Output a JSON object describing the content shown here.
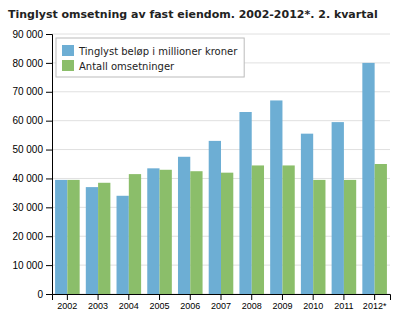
{
  "chart_data": {
    "type": "bar",
    "title": "Tinglyst omsetning av fast eiendom. 2002-2012*. 2. kvartal",
    "categories": [
      "2002",
      "2003",
      "2004",
      "2005",
      "2006",
      "2007",
      "2008",
      "2009",
      "2010",
      "2011",
      "2012*"
    ],
    "series": [
      {
        "name": "Tinglyst beløp i millioner kroner",
        "color": "#6daed4",
        "values": [
          39500,
          37000,
          34000,
          43500,
          47500,
          53000,
          63000,
          67000,
          55500,
          59500,
          80000
        ]
      },
      {
        "name": "Antall omsetninger",
        "color": "#8bbe6a",
        "values": [
          39500,
          38500,
          41500,
          43000,
          42500,
          42000,
          44500,
          44500,
          39500,
          39500,
          45000
        ]
      }
    ],
    "ylim": [
      0,
      90000
    ],
    "yticks": [
      0,
      {
        "value": 10000,
        "label": "10 000"
      },
      {
        "value": 20000,
        "label": "20 000"
      },
      {
        "value": 30000,
        "label": "30 000"
      },
      {
        "value": 40000,
        "label": "40 000"
      },
      {
        "value": 50000,
        "label": "50 000"
      },
      {
        "value": 60000,
        "label": "60 000"
      },
      {
        "value": 70000,
        "label": "70 000"
      },
      {
        "value": 80000,
        "label": "80 000"
      },
      {
        "value": 90000,
        "label": "90 000"
      }
    ],
    "grid": true,
    "legend": "upper left"
  }
}
